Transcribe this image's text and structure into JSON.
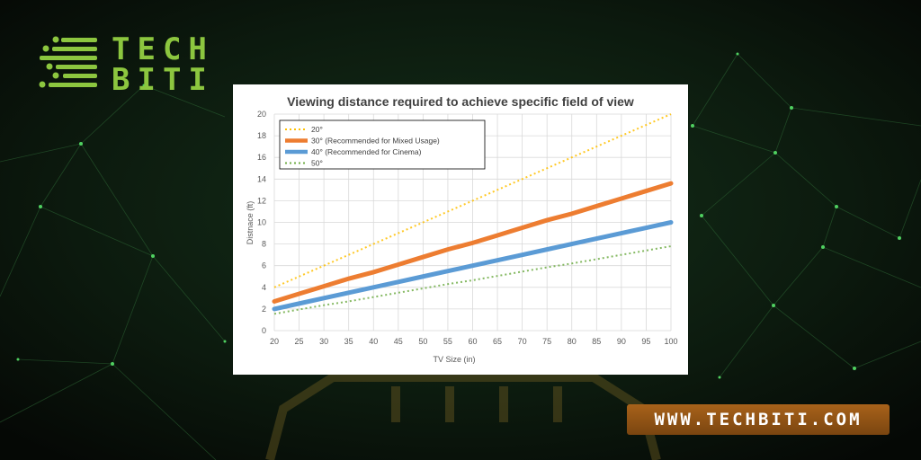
{
  "brand": {
    "line1": "TECH",
    "line2": "BITI",
    "accent_color": "#8cc63f",
    "icon": "circuit-logo-icon"
  },
  "url_badge": {
    "text": "WWW.TECHBITI.COM",
    "color": "#a8621a"
  },
  "background": {
    "color": "#0b120c",
    "node_color": "#3fa34d",
    "icon": "tv-silhouette-icon"
  },
  "chart_data": {
    "type": "line",
    "title": "Viewing distance required to achieve specific field of view",
    "xlabel": "TV Size (in)",
    "ylabel": "Distnace (ft)",
    "x": [
      20,
      25,
      30,
      35,
      40,
      45,
      50,
      55,
      60,
      65,
      70,
      75,
      80,
      85,
      90,
      95,
      100
    ],
    "xlim": [
      20,
      100
    ],
    "ylim": [
      0,
      20
    ],
    "yticks": [
      0,
      2,
      4,
      6,
      8,
      10,
      12,
      14,
      16,
      18,
      20
    ],
    "grid": true,
    "legend_position": "top-left",
    "series": [
      {
        "name": "20°",
        "color": "#ffc000",
        "style": "dotted",
        "values": [
          4.0,
          5.0,
          6.0,
          7.0,
          8.0,
          9.0,
          10.0,
          11.0,
          12.0,
          13.0,
          14.0,
          15.0,
          16.0,
          17.0,
          18.0,
          19.0,
          20.0
        ]
      },
      {
        "name": "30° (Recommended for Mixed Usage)",
        "color": "#ed7d31",
        "style": "solid-thick",
        "values": [
          2.7,
          3.4,
          4.1,
          4.8,
          5.4,
          6.1,
          6.8,
          7.5,
          8.1,
          8.8,
          9.5,
          10.2,
          10.8,
          11.5,
          12.2,
          12.9,
          13.6
        ]
      },
      {
        "name": "40° (Recommended for Cinema)",
        "color": "#5b9bd5",
        "style": "solid-thick",
        "values": [
          2.0,
          2.5,
          3.0,
          3.5,
          4.0,
          4.5,
          5.0,
          5.5,
          6.0,
          6.5,
          7.0,
          7.5,
          8.0,
          8.5,
          9.0,
          9.5,
          10.0
        ]
      },
      {
        "name": "50°",
        "color": "#70ad47",
        "style": "dotted",
        "values": [
          1.55,
          1.95,
          2.35,
          2.7,
          3.1,
          3.5,
          3.9,
          4.3,
          4.65,
          5.05,
          5.45,
          5.85,
          6.2,
          6.6,
          7.0,
          7.4,
          7.8
        ]
      }
    ]
  }
}
